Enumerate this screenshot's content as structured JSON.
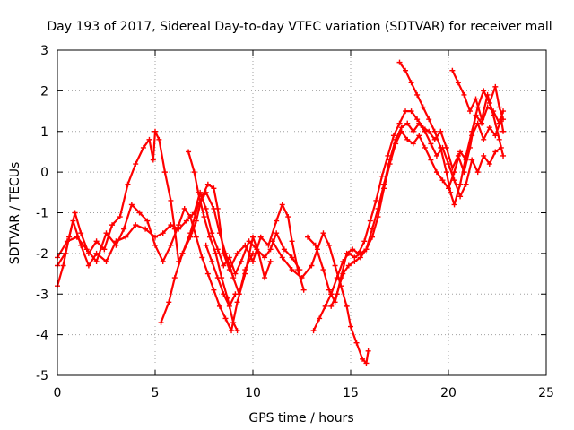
{
  "chart_data": {
    "type": "scatter",
    "title": "Day 193 of 2017, Sidereal Day-to-day VTEC variation (SDTVAR) for receiver mall",
    "xlabel": "GPS time / hours",
    "ylabel": "SDTVAR / TECUs",
    "xlim": [
      0,
      25
    ],
    "ylim": [
      -5,
      3
    ],
    "xticks": [
      0,
      5,
      10,
      15,
      20,
      25
    ],
    "yticks": [
      -5,
      -4,
      -3,
      -2,
      -1,
      0,
      1,
      2,
      3
    ],
    "grid": true,
    "marker": "+",
    "color": "#ff0000",
    "series": [
      {
        "points": [
          [
            0,
            -2.8
          ],
          [
            0.3,
            -2.3
          ],
          [
            0.6,
            -1.6
          ],
          [
            0.9,
            -1.0
          ],
          [
            1.2,
            -1.5
          ],
          [
            1.6,
            -2.0
          ],
          [
            2.0,
            -1.7
          ],
          [
            2.4,
            -1.9
          ],
          [
            2.8,
            -1.3
          ],
          [
            3.2,
            -1.1
          ],
          [
            3.6,
            -0.3
          ],
          [
            4.0,
            0.2
          ],
          [
            4.4,
            0.6
          ],
          [
            4.7,
            0.8
          ],
          [
            4.9,
            0.3
          ],
          [
            5.0,
            1.0
          ],
          [
            5.2,
            0.8
          ],
          [
            5.5,
            0.0
          ],
          [
            5.8,
            -0.7
          ],
          [
            6.0,
            -1.4
          ],
          [
            6.2,
            -2.2
          ],
          [
            6.4,
            -2.0
          ],
          [
            6.8,
            -1.6
          ],
          [
            7.1,
            -1.2
          ],
          [
            7.4,
            -0.6
          ],
          [
            7.7,
            -0.3
          ],
          [
            8.0,
            -0.4
          ],
          [
            8.2,
            -0.9
          ],
          [
            8.5,
            -2.0
          ],
          [
            8.8,
            -2.4
          ],
          [
            9.2,
            -2.0
          ],
          [
            9.6,
            -1.8
          ],
          [
            10.0,
            -2.2
          ],
          [
            10.4,
            -1.6
          ],
          [
            10.8,
            -1.8
          ],
          [
            11.2,
            -1.2
          ],
          [
            11.5,
            -0.8
          ],
          [
            11.8,
            -1.1
          ],
          [
            12.0,
            -1.7
          ],
          [
            12.3,
            -2.4
          ],
          [
            12.6,
            -2.9
          ]
        ]
      },
      {
        "points": [
          [
            0,
            -2.3
          ],
          [
            0.4,
            -2.0
          ],
          [
            0.8,
            -1.2
          ],
          [
            1.2,
            -1.8
          ],
          [
            1.6,
            -2.3
          ],
          [
            2.0,
            -2.0
          ],
          [
            2.5,
            -2.2
          ],
          [
            3.0,
            -1.7
          ],
          [
            3.5,
            -1.6
          ],
          [
            4.0,
            -1.3
          ],
          [
            4.5,
            -1.4
          ],
          [
            5.0,
            -1.6
          ],
          [
            5.4,
            -1.5
          ],
          [
            5.8,
            -1.3
          ],
          [
            6.2,
            -1.4
          ],
          [
            6.6,
            -1.2
          ],
          [
            7.0,
            -1.0
          ],
          [
            7.3,
            -0.5
          ],
          [
            7.6,
            -0.9
          ],
          [
            7.9,
            -1.5
          ],
          [
            8.2,
            -1.9
          ],
          [
            8.5,
            -2.3
          ],
          [
            8.8,
            -2.1
          ],
          [
            9.1,
            -2.5
          ],
          [
            9.4,
            -2.2
          ],
          [
            9.8,
            -1.7
          ],
          [
            10.2,
            -1.9
          ],
          [
            10.6,
            -2.1
          ],
          [
            10.9,
            -1.9
          ],
          [
            11.2,
            -1.5
          ],
          [
            11.6,
            -1.9
          ],
          [
            12.0,
            -2.1
          ],
          [
            12.4,
            -2.4
          ]
        ]
      },
      {
        "points": [
          [
            0,
            -2.1
          ],
          [
            0.5,
            -1.7
          ],
          [
            1.0,
            -1.6
          ],
          [
            1.5,
            -1.9
          ],
          [
            2.0,
            -2.2
          ],
          [
            2.5,
            -1.5
          ],
          [
            3.0,
            -1.8
          ],
          [
            3.4,
            -1.4
          ],
          [
            3.8,
            -0.8
          ],
          [
            4.2,
            -1.0
          ],
          [
            4.6,
            -1.2
          ],
          [
            5.0,
            -1.8
          ],
          [
            5.4,
            -2.2
          ],
          [
            5.8,
            -1.8
          ],
          [
            6.2,
            -1.3
          ],
          [
            6.5,
            -0.9
          ],
          [
            6.8,
            -1.1
          ],
          [
            7.1,
            -1.6
          ],
          [
            7.4,
            -2.1
          ],
          [
            7.7,
            -2.5
          ],
          [
            8.0,
            -2.9
          ],
          [
            8.3,
            -3.3
          ],
          [
            8.6,
            -3.6
          ],
          [
            8.9,
            -3.9
          ],
          [
            9.2,
            -3.2
          ],
          [
            9.6,
            -2.5
          ],
          [
            10.0,
            -1.6
          ],
          [
            10.3,
            -2.0
          ],
          [
            10.6,
            -2.6
          ],
          [
            10.9,
            -2.2
          ]
        ]
      },
      {
        "points": [
          [
            5.3,
            -3.7
          ],
          [
            5.7,
            -3.2
          ],
          [
            6.0,
            -2.6
          ],
          [
            6.4,
            -2.0
          ],
          [
            6.8,
            -1.5
          ],
          [
            7.2,
            -0.8
          ],
          [
            7.6,
            -0.5
          ],
          [
            8.0,
            -0.9
          ],
          [
            8.3,
            -1.5
          ],
          [
            8.6,
            -2.0
          ],
          [
            9.0,
            -2.6
          ],
          [
            9.3,
            -3.0
          ],
          [
            9.6,
            -2.4
          ],
          [
            10.0,
            -2.0
          ]
        ]
      },
      {
        "points": [
          [
            6.7,
            0.5
          ],
          [
            7.0,
            0.0
          ],
          [
            7.2,
            -0.5
          ],
          [
            7.5,
            -1.1
          ],
          [
            7.8,
            -1.6
          ],
          [
            8.1,
            -2.0
          ],
          [
            8.4,
            -2.6
          ],
          [
            8.7,
            -3.1
          ],
          [
            9.0,
            -3.7
          ],
          [
            9.2,
            -3.9
          ]
        ]
      },
      {
        "points": [
          [
            7.6,
            -1.8
          ],
          [
            7.9,
            -2.2
          ],
          [
            8.2,
            -2.6
          ],
          [
            8.5,
            -3.0
          ],
          [
            8.8,
            -3.3
          ],
          [
            9.1,
            -3.0
          ]
        ]
      },
      {
        "points": [
          [
            11.0,
            -1.7
          ],
          [
            11.5,
            -2.1
          ],
          [
            12.0,
            -2.4
          ],
          [
            12.5,
            -2.6
          ],
          [
            13.0,
            -2.3
          ],
          [
            13.3,
            -1.9
          ],
          [
            13.6,
            -1.5
          ],
          [
            13.9,
            -1.8
          ],
          [
            14.2,
            -2.3
          ],
          [
            14.5,
            -2.8
          ],
          [
            14.8,
            -3.3
          ],
          [
            15.0,
            -3.8
          ],
          [
            15.3,
            -4.2
          ],
          [
            15.6,
            -4.6
          ],
          [
            15.8,
            -4.7
          ],
          [
            15.9,
            -4.4
          ]
        ]
      },
      {
        "points": [
          [
            13.1,
            -3.9
          ],
          [
            13.4,
            -3.6
          ],
          [
            13.7,
            -3.3
          ],
          [
            14.0,
            -3.0
          ],
          [
            14.3,
            -2.6
          ],
          [
            14.6,
            -2.2
          ],
          [
            14.9,
            -2.0
          ],
          [
            15.2,
            -2.1
          ],
          [
            15.5,
            -2.0
          ],
          [
            15.8,
            -1.9
          ],
          [
            16.1,
            -1.6
          ],
          [
            16.4,
            -1.1
          ],
          [
            16.7,
            -0.4
          ],
          [
            17.0,
            0.2
          ],
          [
            17.3,
            0.7
          ],
          [
            17.6,
            1.0
          ],
          [
            17.9,
            0.8
          ],
          [
            18.2,
            0.7
          ],
          [
            18.5,
            0.9
          ],
          [
            18.8,
            0.6
          ],
          [
            19.1,
            0.3
          ],
          [
            19.4,
            0.0
          ],
          [
            19.7,
            -0.2
          ],
          [
            20.0,
            -0.4
          ],
          [
            20.3,
            0.0
          ],
          [
            20.6,
            0.5
          ],
          [
            20.9,
            0.3
          ],
          [
            21.2,
            0.9
          ],
          [
            21.5,
            1.2
          ],
          [
            21.8,
            0.8
          ],
          [
            22.1,
            1.1
          ],
          [
            22.4,
            0.9
          ],
          [
            22.7,
            1.3
          ],
          [
            22.8,
            1.0
          ]
        ]
      },
      {
        "points": [
          [
            12.8,
            -1.6
          ],
          [
            13.2,
            -1.8
          ],
          [
            13.6,
            -2.4
          ],
          [
            13.9,
            -2.9
          ],
          [
            14.2,
            -3.2
          ],
          [
            14.5,
            -2.6
          ],
          [
            14.8,
            -2.0
          ],
          [
            15.1,
            -1.9
          ],
          [
            15.4,
            -2.0
          ],
          [
            15.7,
            -1.7
          ],
          [
            16.0,
            -1.2
          ],
          [
            16.3,
            -0.7
          ],
          [
            16.6,
            -0.1
          ],
          [
            16.9,
            0.4
          ],
          [
            17.2,
            0.9
          ],
          [
            17.5,
            1.2
          ],
          [
            17.8,
            1.5
          ],
          [
            18.1,
            1.5
          ],
          [
            18.4,
            1.3
          ],
          [
            18.7,
            1.1
          ],
          [
            19.0,
            1.0
          ],
          [
            19.3,
            0.8
          ],
          [
            19.6,
            1.0
          ],
          [
            19.9,
            0.6
          ],
          [
            20.2,
            0.1
          ],
          [
            20.5,
            0.4
          ],
          [
            20.8,
            0.0
          ],
          [
            21.1,
            0.6
          ],
          [
            21.4,
            1.4
          ],
          [
            21.7,
            1.2
          ],
          [
            22.0,
            1.6
          ],
          [
            22.3,
            1.5
          ],
          [
            22.6,
            1.2
          ],
          [
            22.8,
            1.5
          ]
        ]
      },
      {
        "points": [
          [
            14.0,
            -3.3
          ],
          [
            14.3,
            -3.0
          ],
          [
            14.6,
            -2.5
          ],
          [
            14.9,
            -2.3
          ],
          [
            15.2,
            -2.2
          ],
          [
            15.5,
            -2.1
          ],
          [
            15.8,
            -1.9
          ],
          [
            16.1,
            -1.4
          ],
          [
            16.4,
            -0.9
          ],
          [
            16.7,
            -0.3
          ],
          [
            17.0,
            0.3
          ],
          [
            17.3,
            0.8
          ],
          [
            17.6,
            1.1
          ],
          [
            17.9,
            1.2
          ],
          [
            18.2,
            1.0
          ],
          [
            18.5,
            1.2
          ],
          [
            18.8,
            1.0
          ],
          [
            19.1,
            0.7
          ],
          [
            19.4,
            0.4
          ],
          [
            19.7,
            0.6
          ],
          [
            20.0,
            0.2
          ],
          [
            20.3,
            -0.2
          ],
          [
            20.6,
            -0.6
          ],
          [
            20.9,
            -0.3
          ],
          [
            21.2,
            0.3
          ],
          [
            21.5,
            0.0
          ],
          [
            21.8,
            0.4
          ],
          [
            22.1,
            0.2
          ],
          [
            22.4,
            0.5
          ],
          [
            22.7,
            0.6
          ]
        ]
      },
      {
        "points": [
          [
            17.5,
            2.7
          ],
          [
            17.8,
            2.5
          ],
          [
            18.1,
            2.2
          ],
          [
            18.4,
            1.9
          ],
          [
            18.7,
            1.6
          ],
          [
            19.0,
            1.3
          ],
          [
            19.3,
            1.0
          ],
          [
            19.6,
            0.6
          ],
          [
            19.9,
            0.0
          ],
          [
            20.1,
            -0.5
          ],
          [
            20.3,
            -0.8
          ],
          [
            20.6,
            -0.3
          ],
          [
            20.9,
            0.4
          ],
          [
            21.2,
            1.0
          ],
          [
            21.5,
            1.6
          ],
          [
            21.8,
            2.0
          ],
          [
            22.1,
            1.7
          ],
          [
            22.4,
            2.1
          ],
          [
            22.6,
            1.6
          ],
          [
            22.8,
            1.3
          ]
        ]
      },
      {
        "points": [
          [
            20.2,
            2.5
          ],
          [
            20.5,
            2.2
          ],
          [
            20.8,
            1.9
          ],
          [
            21.1,
            1.5
          ],
          [
            21.4,
            1.8
          ],
          [
            21.7,
            1.3
          ],
          [
            22.0,
            1.9
          ],
          [
            22.3,
            1.4
          ],
          [
            22.6,
            0.8
          ],
          [
            22.8,
            0.4
          ]
        ]
      }
    ]
  }
}
